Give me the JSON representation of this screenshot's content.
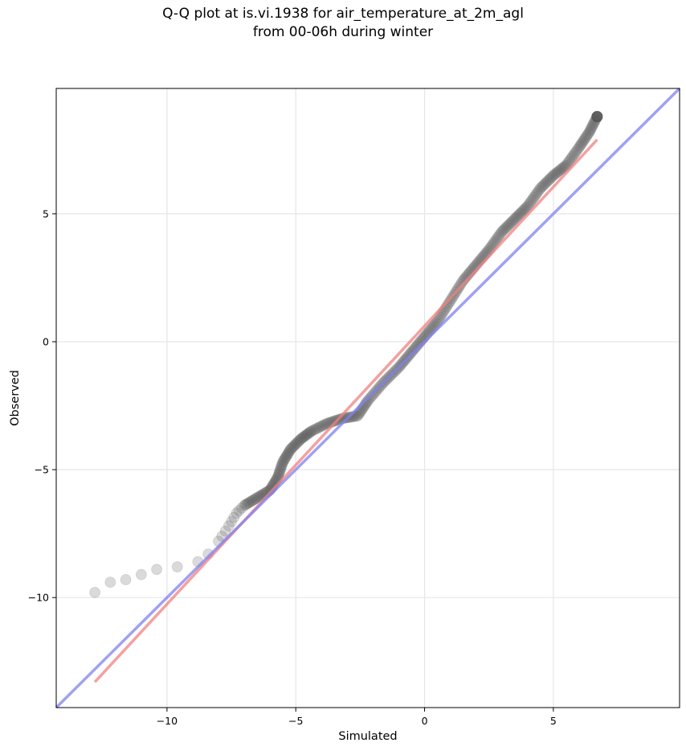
{
  "title_line1": "Q-Q plot at is.vi.1938 for air_temperature_at_2m_agl",
  "title_line2": "from 00-06h during winter",
  "chart_data": {
    "type": "scatter",
    "xlabel": "Simulated",
    "ylabel": "Observed",
    "xlim": [
      -14.3,
      9.9
    ],
    "ylim": [
      -14.3,
      9.9
    ],
    "xticks": [
      -10,
      -5,
      0,
      5
    ],
    "yticks": [
      -10,
      -5,
      0,
      5
    ],
    "xtick_labels": [
      "−10",
      "−5",
      "0",
      "5"
    ],
    "ytick_labels": [
      "−10",
      "−5",
      "0",
      "5"
    ],
    "grid": true,
    "lines": [
      {
        "color": "#f08080",
        "x": [
          -12.8,
          6.7
        ],
        "y": [
          -13.3,
          7.9
        ]
      },
      {
        "color": "#8080f0",
        "x": [
          -14.3,
          9.9
        ],
        "y": [
          -14.3,
          9.9
        ]
      }
    ],
    "quantile_curve": {
      "x": [
        -12.8,
        -12.2,
        -11.6,
        -11.0,
        -10.4,
        -9.6,
        -8.8,
        -8.4,
        -8.0,
        -7.6,
        -7.3,
        -7.0,
        -6.5,
        -6.0,
        -5.7,
        -5.5,
        -5.2,
        -4.8,
        -4.4,
        -3.8,
        -3.2,
        -2.6,
        -2.2,
        -1.6,
        -1.0,
        -0.5,
        0.0,
        0.5,
        1.0,
        1.5,
        2.0,
        2.5,
        3.0,
        3.5,
        4.0,
        4.5,
        5.0,
        5.5,
        6.0,
        6.4,
        6.7
      ],
      "y": [
        -9.8,
        -9.4,
        -9.3,
        -9.1,
        -8.9,
        -8.8,
        -8.6,
        -8.3,
        -7.8,
        -7.2,
        -6.7,
        -6.4,
        -6.1,
        -5.8,
        -5.3,
        -4.7,
        -4.2,
        -3.8,
        -3.5,
        -3.2,
        -3.0,
        -2.9,
        -2.3,
        -1.6,
        -1.0,
        -0.4,
        0.2,
        0.8,
        1.6,
        2.4,
        3.0,
        3.6,
        4.3,
        4.8,
        5.3,
        6.0,
        6.5,
        6.9,
        7.6,
        8.2,
        8.8
      ]
    }
  }
}
